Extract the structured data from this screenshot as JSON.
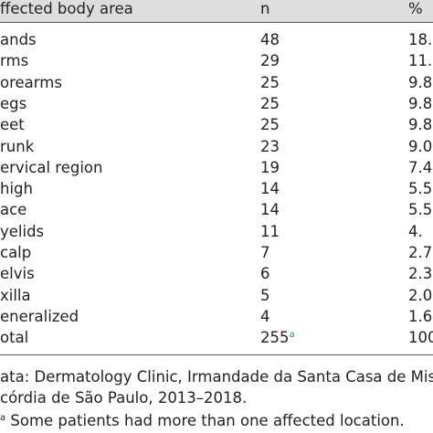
{
  "table": {
    "header": [
      "ffected body area",
      "n",
      "%"
    ],
    "rows": [
      [
        "ands",
        "48",
        "18."
      ],
      [
        "rms",
        "29",
        "11."
      ],
      [
        "orearms",
        "25",
        "9.8"
      ],
      [
        "egs",
        "25",
        "9.8"
      ],
      [
        "eet",
        "25",
        "9.8"
      ],
      [
        "runk",
        "23",
        "9.0"
      ],
      [
        "ervical region",
        "19",
        "7.4"
      ],
      [
        "high",
        "14",
        "5.5"
      ],
      [
        "ace",
        "14",
        "5.5"
      ],
      [
        "yelids",
        "11",
        "4."
      ],
      [
        "calp",
        "7",
        "2.7"
      ],
      [
        "elvis",
        "6",
        "2.3"
      ],
      [
        "xilla",
        "5",
        "2.0"
      ],
      [
        "eneralized",
        "4",
        "1.6"
      ],
      [
        "otal",
        "255",
        "100"
      ]
    ],
    "total_mark": "a"
  },
  "footnotes": {
    "source_line1": "ata: Dermatology Clinic, Irmandade da Santa Casa de Miser",
    "source_line2": "córdia de São Paulo, 2013–2018.",
    "note_mark": "a",
    "note_text": "Some patients had more than one affected location."
  }
}
